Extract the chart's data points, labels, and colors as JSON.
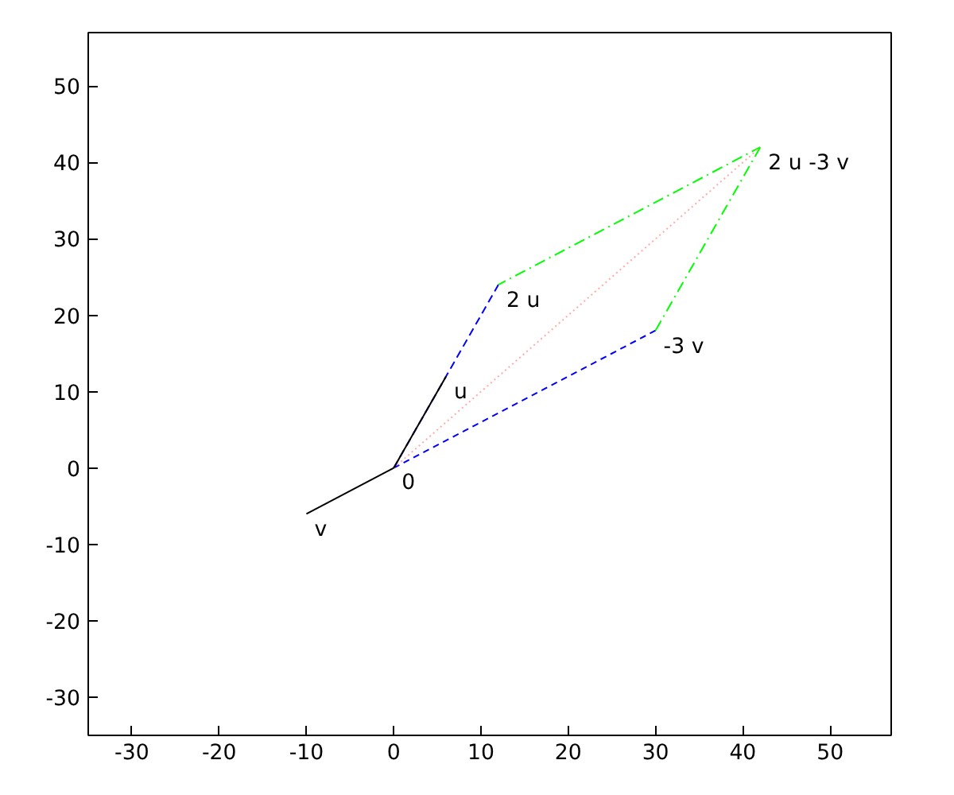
{
  "chart_data": {
    "type": "line",
    "xlim": [
      -35,
      57
    ],
    "ylim": [
      -35,
      57
    ],
    "xticks": [
      -30,
      -20,
      -10,
      0,
      10,
      20,
      30,
      40,
      50
    ],
    "yticks": [
      -30,
      -20,
      -10,
      0,
      10,
      20,
      30,
      40,
      50
    ],
    "grid": false,
    "series": [
      {
        "color": "#0000ff",
        "line_style": "dashed",
        "x": [
          0,
          12
        ],
        "values": [
          0,
          24
        ]
      },
      {
        "color": "#0000ff",
        "line_style": "dashed",
        "x": [
          0,
          30
        ],
        "values": [
          0,
          18
        ]
      },
      {
        "color": "#00ff00",
        "line_style": "dashdot",
        "x": [
          12,
          42
        ],
        "values": [
          24,
          42
        ]
      },
      {
        "color": "#00ff00",
        "line_style": "dashdot",
        "x": [
          30,
          42
        ],
        "values": [
          18,
          42
        ]
      },
      {
        "color": "#ffaaaa",
        "line_style": "dotted",
        "x": [
          0,
          42
        ],
        "values": [
          0,
          42
        ]
      },
      {
        "color": "#000000",
        "line_style": "solid",
        "x": [
          0,
          6
        ],
        "values": [
          0,
          12
        ]
      },
      {
        "color": "#000000",
        "line_style": "solid",
        "x": [
          0,
          -10
        ],
        "values": [
          0,
          -6
        ]
      }
    ],
    "annotations": [
      {
        "text": "0",
        "x": 0,
        "y": 0
      },
      {
        "text": "u",
        "x": 6,
        "y": 12
      },
      {
        "text": "v",
        "x": -10,
        "y": -6
      },
      {
        "text": "2 u",
        "x": 12,
        "y": 24
      },
      {
        "text": "-3 v",
        "x": 30,
        "y": 18
      },
      {
        "text": "2 u -3 v",
        "x": 42,
        "y": 42
      }
    ]
  }
}
